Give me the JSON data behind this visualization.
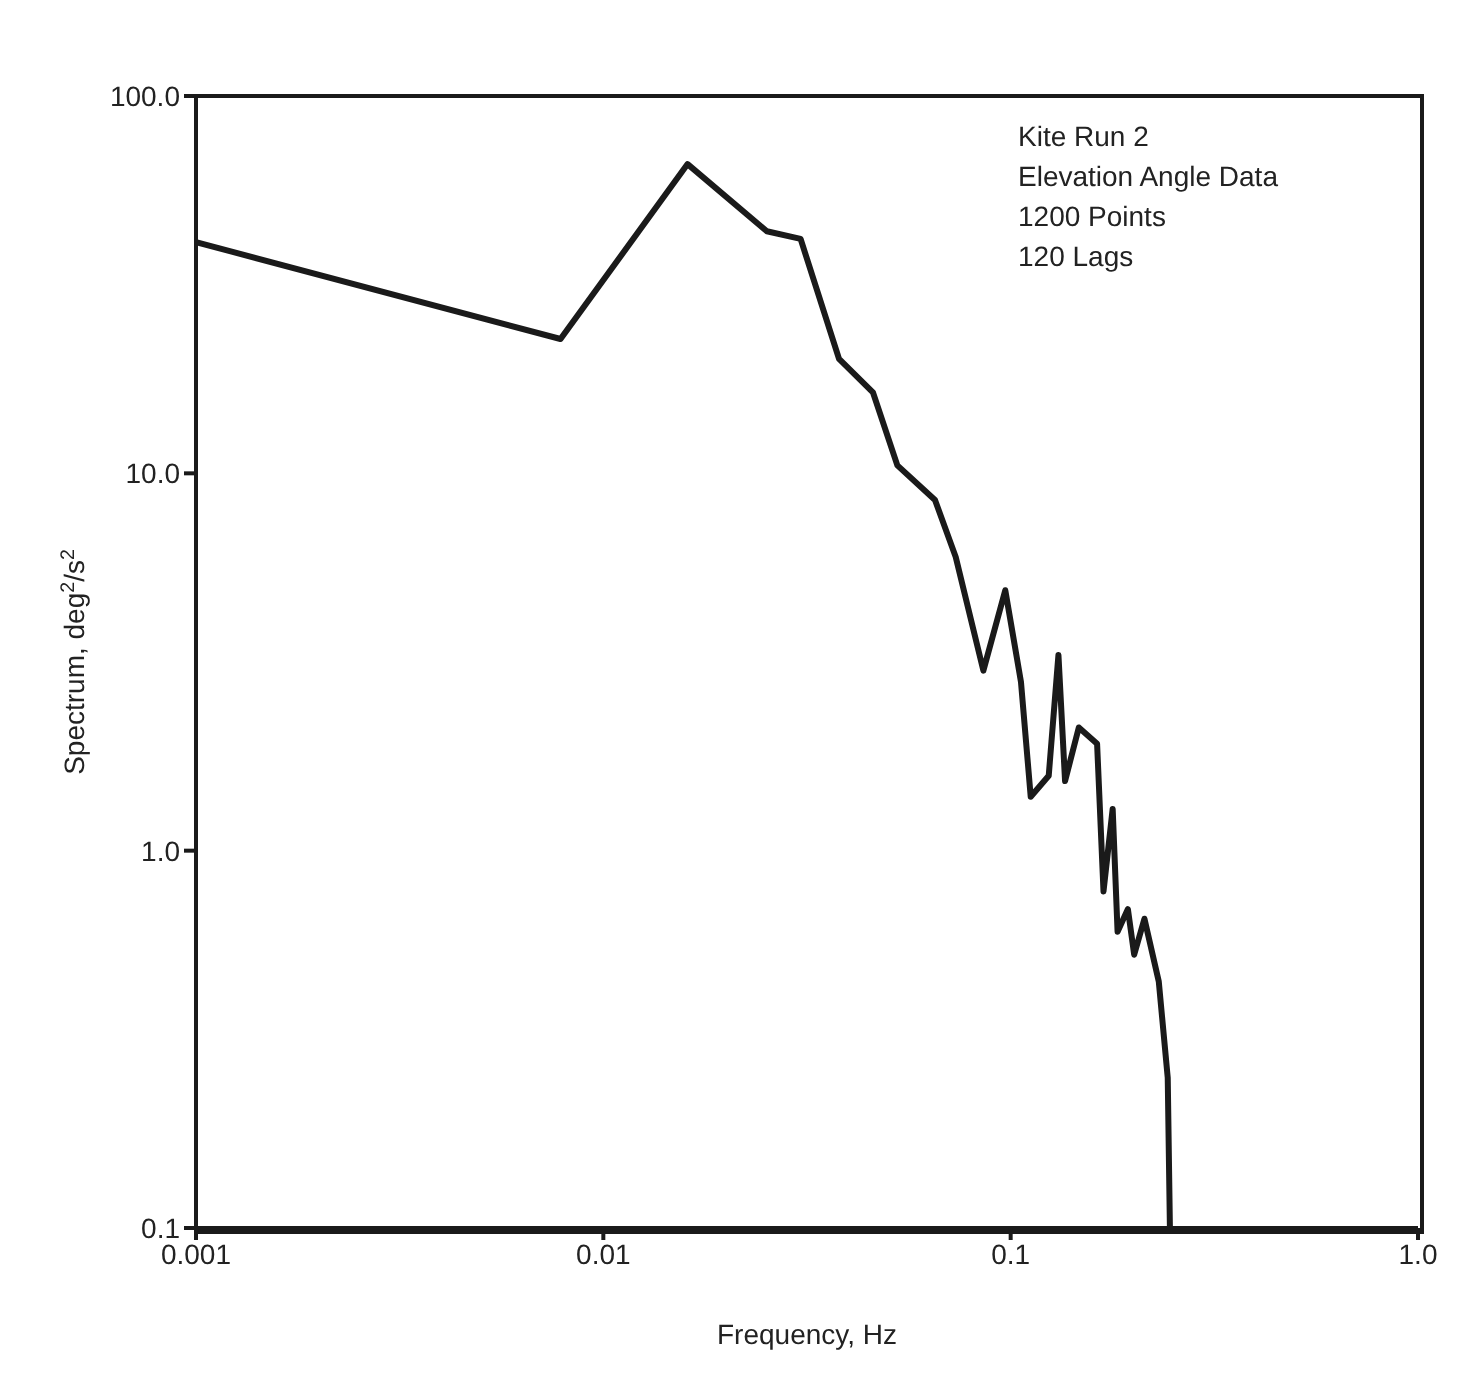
{
  "chart_data": {
    "type": "line",
    "xlabel": "Frequency, Hz",
    "ylabel": "Spectrum, deg$^{2}$/s$^{2}$",
    "annotations": [
      "Kite Run 2",
      "Elevation Angle Data",
      "1200 Points",
      "120 Lags"
    ],
    "log": "xy",
    "xlim": [
      0.001,
      1.0
    ],
    "xticks": [
      0.001,
      0.01,
      0.1,
      {
        "value": 1.0,
        "label": "1.0"
      }
    ],
    "ylim": [
      0.1,
      100.0
    ],
    "yticks": [
      0.1,
      {
        "value": 1.0,
        "label": "1.0"
      },
      {
        "value": 10.0,
        "label": "10.0"
      },
      {
        "value": 100.0,
        "label": "100.0"
      }
    ],
    "grid": false,
    "legend": false,
    "marker": "none",
    "line_style": "solid",
    "series": [
      {
        "color": "#1a1a1a",
        "x": [
          0.001,
          0.00785,
          0.0161,
          0.0252,
          0.0305,
          0.0379,
          0.0459,
          0.0527,
          0.0652,
          0.0733,
          0.0857,
          0.097,
          0.106,
          0.112,
          0.124,
          0.131,
          0.136,
          0.147,
          0.163,
          0.169,
          0.178,
          0.183,
          0.194,
          0.201,
          0.213,
          0.231,
          0.243,
          0.246
        ],
        "values": [
          41,
          22.7,
          66,
          43.8,
          41.8,
          20.1,
          16.4,
          10.5,
          8.5,
          6.0,
          3.0,
          4.9,
          2.8,
          1.39,
          1.58,
          3.3,
          1.53,
          2.12,
          1.92,
          0.78,
          1.29,
          0.61,
          0.7,
          0.53,
          0.66,
          0.45,
          0.25,
          0.1
        ]
      }
    ]
  }
}
